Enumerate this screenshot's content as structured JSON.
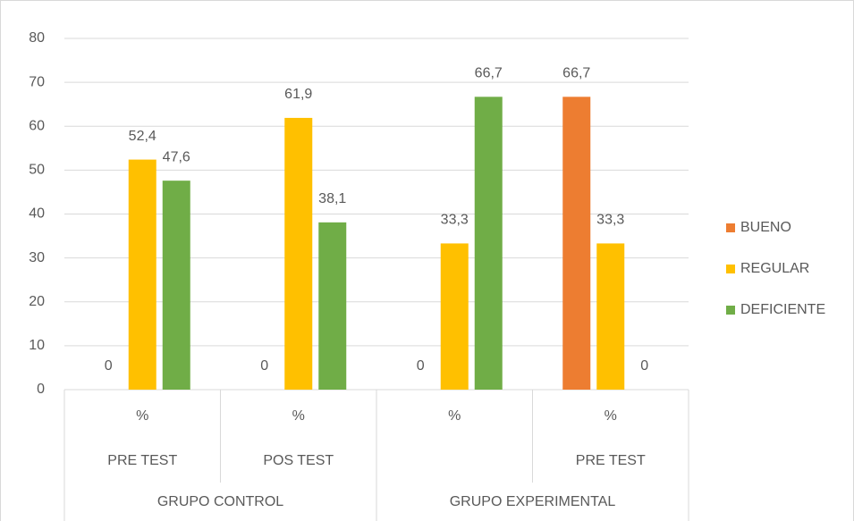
{
  "chart_data": {
    "type": "bar",
    "categories": [
      "%",
      "%",
      "%",
      "%"
    ],
    "subcategories": [
      "PRE TEST",
      "POS TEST",
      null,
      "PRE TEST"
    ],
    "groups": [
      "GRUPO CONTROL",
      "GRUPO EXPERIMENTAL"
    ],
    "series": [
      {
        "name": "BUENO",
        "color": "#ed7d31",
        "values": [
          0,
          0,
          0,
          66.7
        ],
        "value_labels": [
          "0",
          "0",
          "0",
          "66,7"
        ]
      },
      {
        "name": "REGULAR",
        "color": "#ffc000",
        "values": [
          52.4,
          61.9,
          33.3,
          33.3
        ],
        "value_labels": [
          "52,4",
          "61,9",
          "33,3",
          "33,3"
        ]
      },
      {
        "name": "DEFICIENTE",
        "color": "#70ad47",
        "values": [
          47.6,
          38.1,
          66.7,
          0
        ],
        "value_labels": [
          "47,6",
          "38,1",
          "66,7",
          "0"
        ]
      }
    ],
    "ylim": [
      0,
      80
    ],
    "yticks": [
      0,
      10,
      20,
      30,
      40,
      50,
      60,
      70,
      80
    ],
    "grid": true,
    "legend": "right"
  }
}
